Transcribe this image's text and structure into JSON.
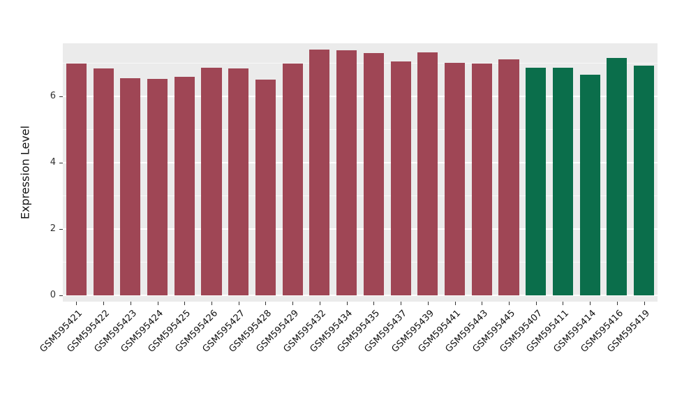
{
  "chart_data": {
    "type": "bar",
    "title": "",
    "xlabel": "",
    "ylabel": "Expression Level",
    "ylim": [
      0,
      7.6
    ],
    "yticks": [
      0,
      2,
      4,
      6
    ],
    "minor_gridlines": [
      1,
      3,
      5,
      7
    ],
    "grid": "on",
    "legend": "none",
    "panel_background": "#EBEBEB",
    "grid_color": "#FFFFFF",
    "group_colors": {
      "red_group": "#9F4655",
      "green_group": "#0B6E4B"
    },
    "categories": [
      "GSM595421",
      "GSM595422",
      "GSM595423",
      "GSM595424",
      "GSM595425",
      "GSM595426",
      "GSM595427",
      "GSM595428",
      "GSM595429",
      "GSM595432",
      "GSM595434",
      "GSM595435",
      "GSM595437",
      "GSM595439",
      "GSM595441",
      "GSM595443",
      "GSM595445",
      "GSM595407",
      "GSM595411",
      "GSM595414",
      "GSM595416",
      "GSM595419"
    ],
    "values": [
      7.0,
      6.85,
      6.55,
      6.52,
      6.58,
      6.87,
      6.84,
      6.5,
      7.0,
      7.42,
      7.4,
      7.3,
      7.05,
      7.32,
      7.02,
      6.98,
      7.12,
      6.87,
      6.87,
      6.65,
      7.15,
      6.92
    ],
    "bars": [
      {
        "label": "GSM595421",
        "value": 7.0,
        "color": "#9F4655"
      },
      {
        "label": "GSM595422",
        "value": 6.85,
        "color": "#9F4655"
      },
      {
        "label": "GSM595423",
        "value": 6.55,
        "color": "#9F4655"
      },
      {
        "label": "GSM595424",
        "value": 6.52,
        "color": "#9F4655"
      },
      {
        "label": "GSM595425",
        "value": 6.58,
        "color": "#9F4655"
      },
      {
        "label": "GSM595426",
        "value": 6.87,
        "color": "#9F4655"
      },
      {
        "label": "GSM595427",
        "value": 6.84,
        "color": "#9F4655"
      },
      {
        "label": "GSM595428",
        "value": 6.5,
        "color": "#9F4655"
      },
      {
        "label": "GSM595429",
        "value": 7.0,
        "color": "#9F4655"
      },
      {
        "label": "GSM595432",
        "value": 7.42,
        "color": "#9F4655"
      },
      {
        "label": "GSM595434",
        "value": 7.4,
        "color": "#9F4655"
      },
      {
        "label": "GSM595435",
        "value": 7.3,
        "color": "#9F4655"
      },
      {
        "label": "GSM595437",
        "value": 7.05,
        "color": "#9F4655"
      },
      {
        "label": "GSM595439",
        "value": 7.32,
        "color": "#9F4655"
      },
      {
        "label": "GSM595441",
        "value": 7.02,
        "color": "#9F4655"
      },
      {
        "label": "GSM595443",
        "value": 6.98,
        "color": "#9F4655"
      },
      {
        "label": "GSM595445",
        "value": 7.12,
        "color": "#9F4655"
      },
      {
        "label": "GSM595407",
        "value": 6.87,
        "color": "#0B6E4B"
      },
      {
        "label": "GSM595411",
        "value": 6.87,
        "color": "#0B6E4B"
      },
      {
        "label": "GSM595414",
        "value": 6.65,
        "color": "#0B6E4B"
      },
      {
        "label": "GSM595416",
        "value": 7.15,
        "color": "#0B6E4B"
      },
      {
        "label": "GSM595419",
        "value": 6.92,
        "color": "#0B6E4B"
      }
    ]
  }
}
